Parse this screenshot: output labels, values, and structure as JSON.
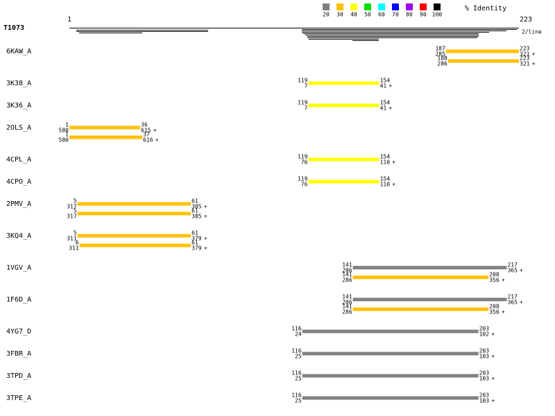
{
  "header": {
    "query": "T1073",
    "start": "1",
    "end": "223",
    "scale_note": "2/line"
  },
  "legend": {
    "title": "% Identity",
    "items": [
      {
        "label": "20",
        "color": "#808080"
      },
      {
        "label": "30",
        "color": "#ffc000"
      },
      {
        "label": "40",
        "color": "#ffff00"
      },
      {
        "label": "50",
        "color": "#00dd00"
      },
      {
        "label": "60",
        "color": "#00ffff"
      },
      {
        "label": "70",
        "color": "#0000ff"
      },
      {
        "label": "80",
        "color": "#a000f0"
      },
      {
        "label": "90",
        "color": "#ff0000"
      },
      {
        "label": "100",
        "color": "#000000"
      }
    ]
  },
  "hits": [
    {
      "name": "6KAW_A",
      "alignments": [
        {
          "q_start": 187,
          "t_start": 285,
          "q_end": 223,
          "t_end": 321,
          "strand": "+",
          "color": "#ffc000"
        },
        {
          "q_start": 188,
          "t_start": 286,
          "q_end": 223,
          "t_end": 321,
          "strand": "+",
          "color": "#ffc000"
        }
      ]
    },
    {
      "name": "3K38_A",
      "alignments": [
        {
          "q_start": 119,
          "t_start": 7,
          "q_end": 154,
          "t_end": 41,
          "strand": "+",
          "color": "#ffff00"
        }
      ]
    },
    {
      "name": "3K36_A",
      "alignments": [
        {
          "q_start": 119,
          "t_start": 7,
          "q_end": 154,
          "t_end": 41,
          "strand": "+",
          "color": "#ffff00"
        }
      ]
    },
    {
      "name": "2OLS_A",
      "alignments": [
        {
          "q_start": 1,
          "t_start": 580,
          "q_end": 36,
          "t_end": 615,
          "strand": "+",
          "color": "#ffc000"
        },
        {
          "q_start": 1,
          "t_start": 580,
          "q_end": 37,
          "t_end": 616,
          "strand": "+",
          "color": "#ffc000"
        }
      ]
    },
    {
      "name": "4CPL_A",
      "alignments": [
        {
          "q_start": 119,
          "t_start": 76,
          "q_end": 154,
          "t_end": 110,
          "strand": "+",
          "color": "#ffff00"
        }
      ]
    },
    {
      "name": "4CPO_A",
      "alignments": [
        {
          "q_start": 119,
          "t_start": 76,
          "q_end": 154,
          "t_end": 110,
          "strand": "+",
          "color": "#ffff00"
        }
      ]
    },
    {
      "name": "2PMV_A",
      "alignments": [
        {
          "q_start": 5,
          "t_start": 317,
          "q_end": 61,
          "t_end": 385,
          "strand": "+",
          "color": "#ffc000"
        },
        {
          "q_start": 5,
          "t_start": 317,
          "q_end": 61,
          "t_end": 385,
          "strand": "+",
          "color": "#ffc000"
        }
      ]
    },
    {
      "name": "3KQ4_A",
      "alignments": [
        {
          "q_start": 5,
          "t_start": 311,
          "q_end": 61,
          "t_end": 379,
          "strand": "+",
          "color": "#ffc000"
        },
        {
          "q_start": 6,
          "t_start": 311,
          "q_end": 61,
          "t_end": 379,
          "strand": "+",
          "color": "#ffc000"
        }
      ]
    },
    {
      "name": "1VGV_A",
      "alignments": [
        {
          "q_start": 141,
          "t_start": 286,
          "q_end": 217,
          "t_end": 365,
          "strand": "+",
          "color": "#808080"
        },
        {
          "q_start": 141,
          "t_start": 286,
          "q_end": 208,
          "t_end": 356,
          "strand": "+",
          "color": "#ffc000"
        }
      ]
    },
    {
      "name": "1F6D_A",
      "alignments": [
        {
          "q_start": 141,
          "t_start": 286,
          "q_end": 217,
          "t_end": 365,
          "strand": "+",
          "color": "#808080"
        },
        {
          "q_start": 141,
          "t_start": 286,
          "q_end": 208,
          "t_end": 356,
          "strand": "+",
          "color": "#ffc000"
        }
      ]
    },
    {
      "name": "4YG7_D",
      "alignments": [
        {
          "q_start": 116,
          "t_start": 24,
          "q_end": 203,
          "t_end": 102,
          "strand": "+",
          "color": "#808080"
        }
      ]
    },
    {
      "name": "3FBR_A",
      "alignments": [
        {
          "q_start": 116,
          "t_start": 25,
          "q_end": 203,
          "t_end": 103,
          "strand": "+",
          "color": "#808080"
        }
      ]
    },
    {
      "name": "3TPD_A",
      "alignments": [
        {
          "q_start": 116,
          "t_start": 25,
          "q_end": 203,
          "t_end": 103,
          "strand": "+",
          "color": "#808080"
        }
      ]
    },
    {
      "name": "3TPE_A",
      "alignments": [
        {
          "q_start": 116,
          "t_start": 25,
          "q_end": 203,
          "t_end": 103,
          "strand": "+",
          "color": "#808080"
        }
      ]
    }
  ]
}
